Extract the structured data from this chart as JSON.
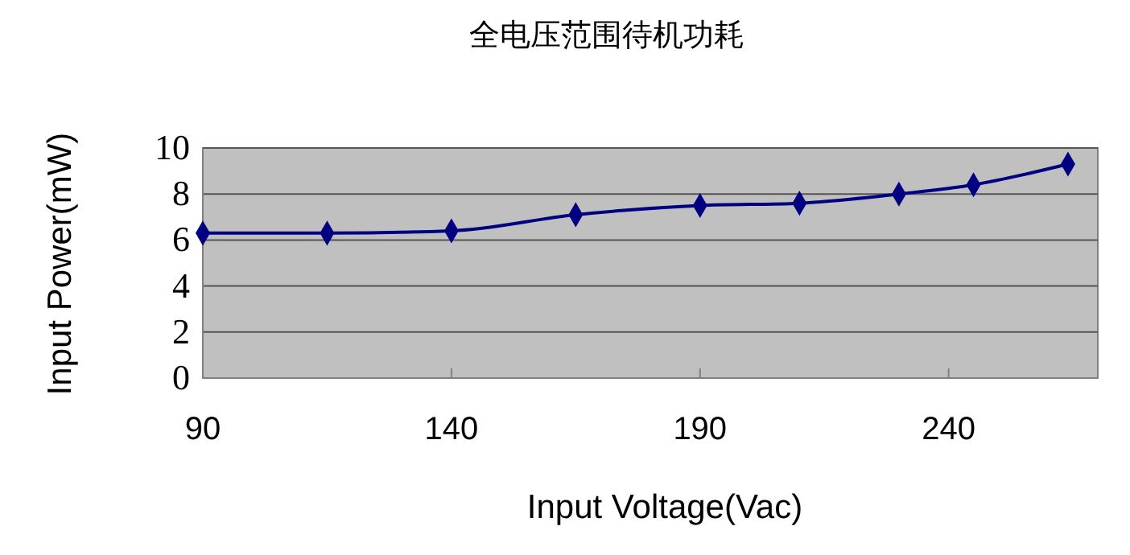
{
  "chart_data": {
    "type": "line",
    "title": "全电压范围待机功耗",
    "xlabel": "Input Voltage(Vac)",
    "ylabel": "Input Power(mW)",
    "x": [
      90,
      115,
      140,
      165,
      190,
      210,
      230,
      245,
      264
    ],
    "series": [
      {
        "color": "#000080",
        "values": [
          6.3,
          6.3,
          6.4,
          7.1,
          7.5,
          7.6,
          8.0,
          8.4,
          9.3
        ]
      }
    ],
    "xlim": [
      90,
      270
    ],
    "xticks": [
      90,
      140,
      190,
      240
    ],
    "ylim": [
      0,
      10
    ],
    "yticks": [
      0,
      2,
      4,
      6,
      8,
      10
    ],
    "grid": "y",
    "marker": "diamond",
    "line_style": "solid"
  }
}
